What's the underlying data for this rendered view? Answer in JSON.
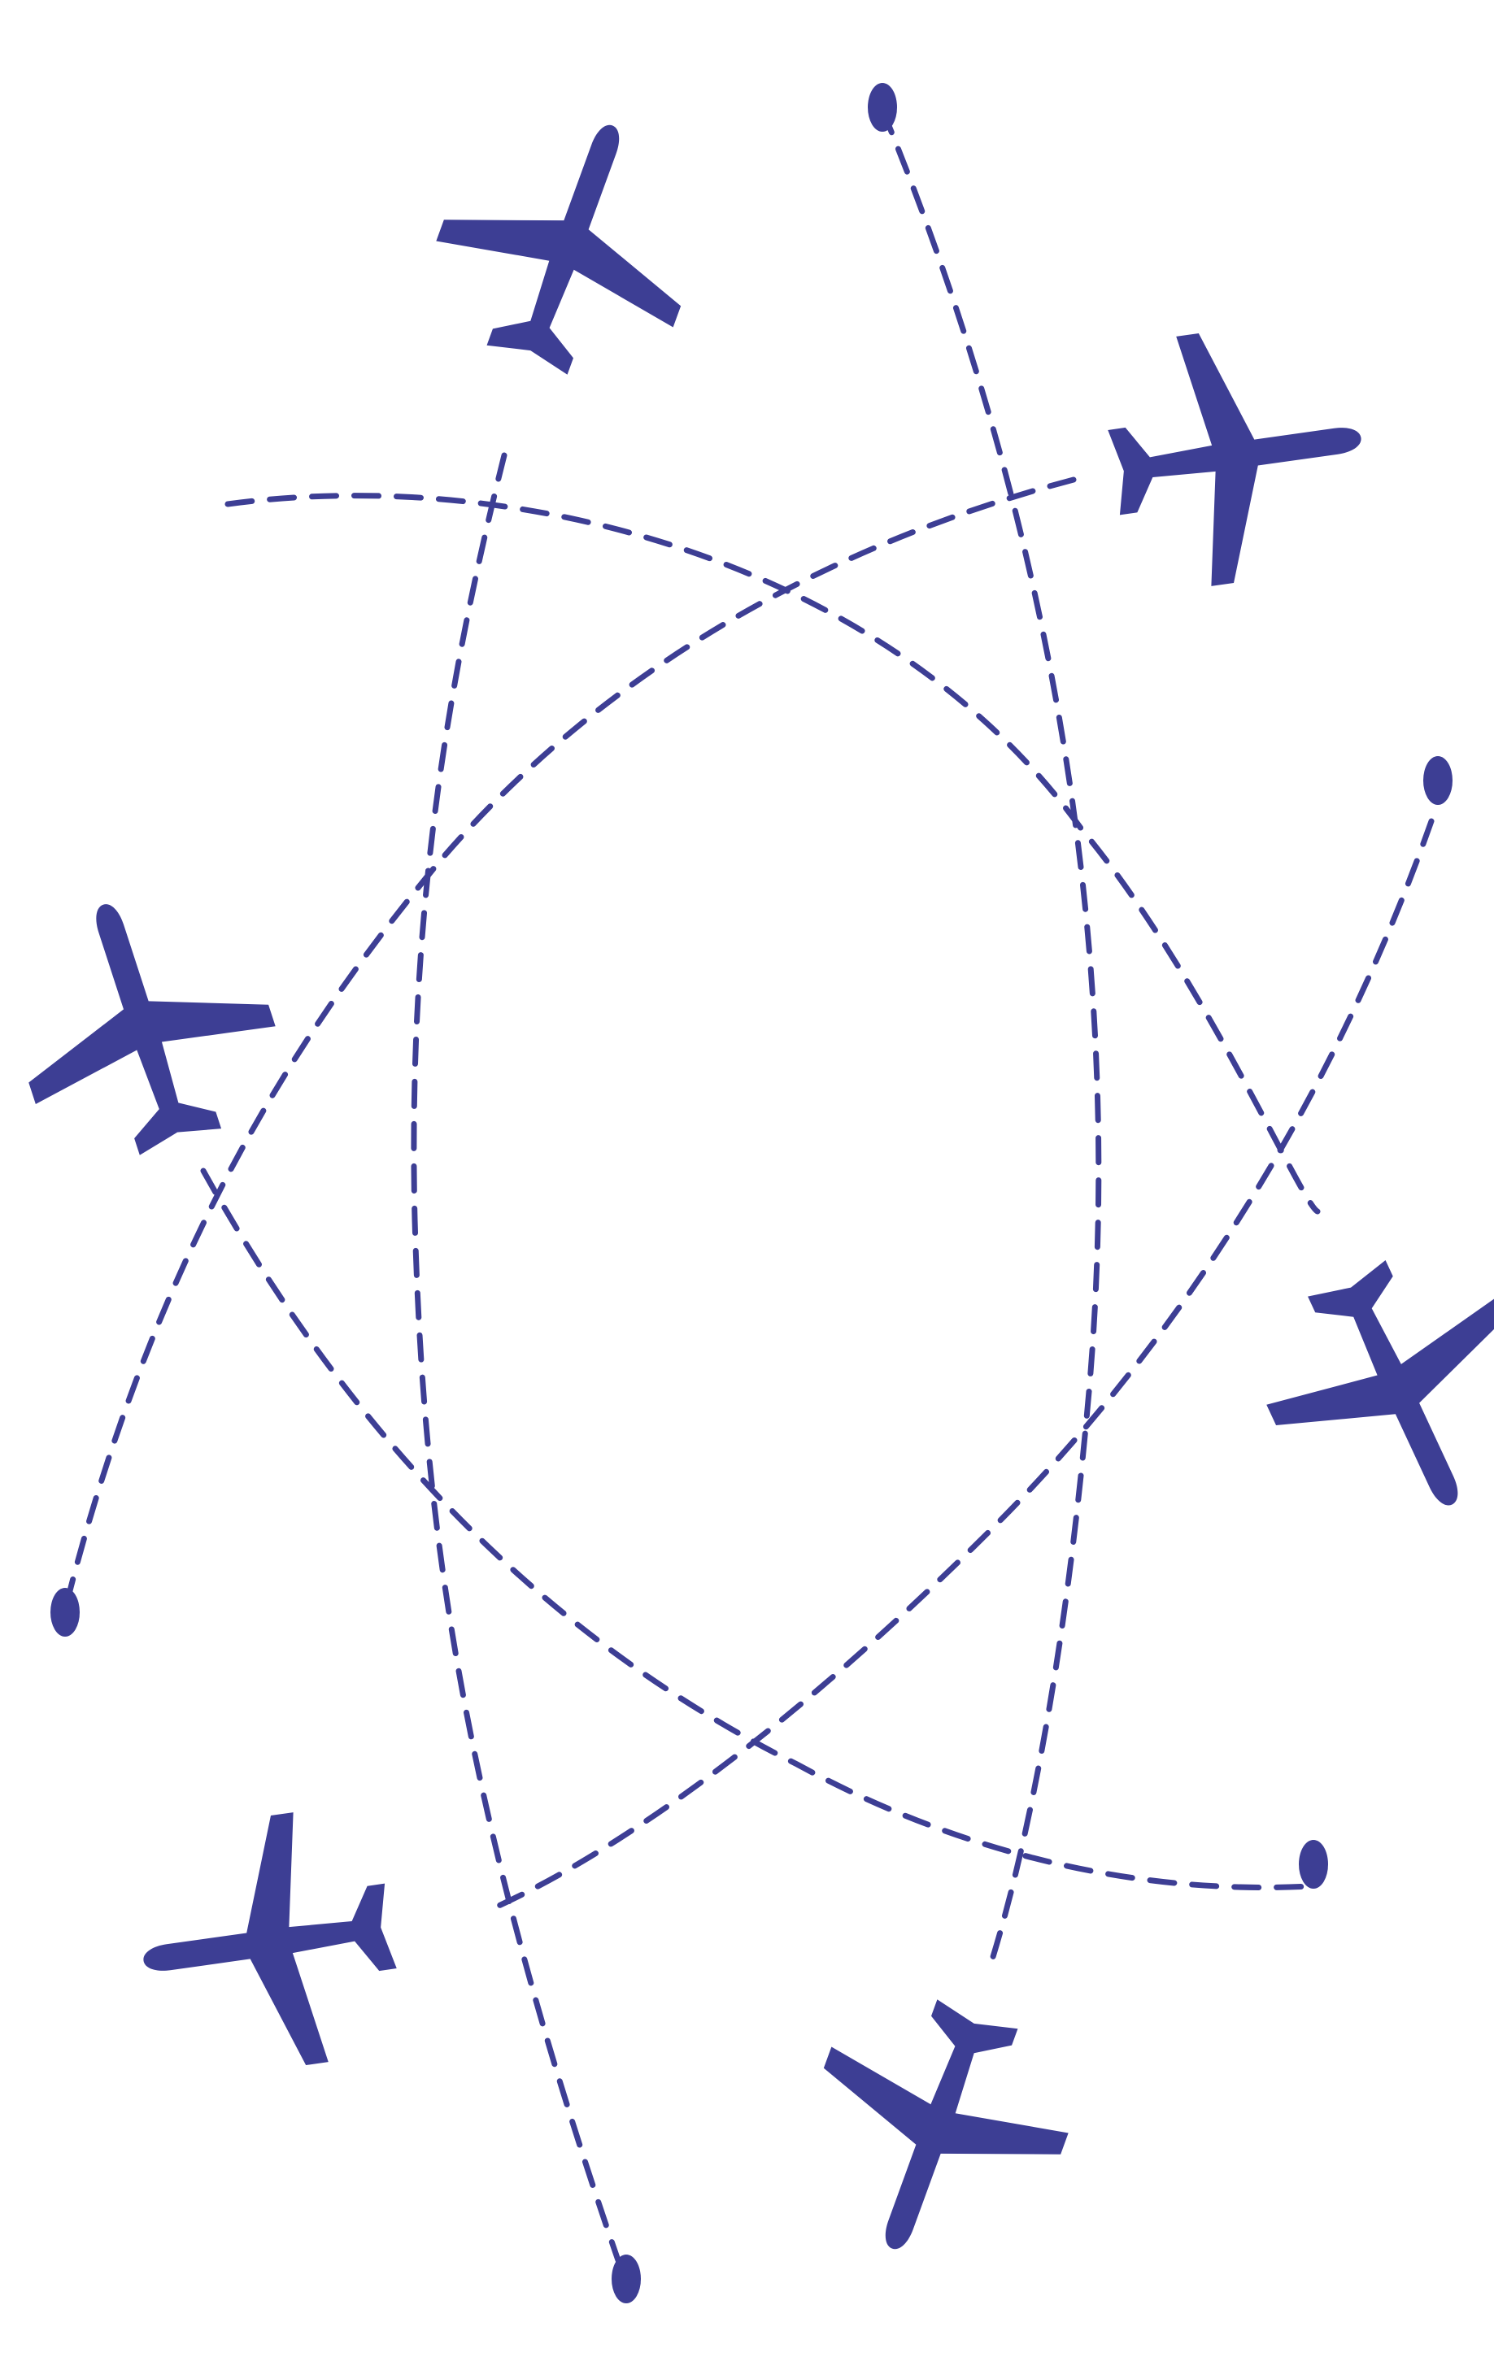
{
  "illustration": {
    "subject": "airplanes-flight-routes",
    "background_color": "#ffffff",
    "accent_color": "#3d3e94",
    "airplane_count": 6,
    "route_count": 6,
    "endpoint_count": 6,
    "icons": [
      "airplane-icon",
      "route-endpoint-icon"
    ]
  }
}
